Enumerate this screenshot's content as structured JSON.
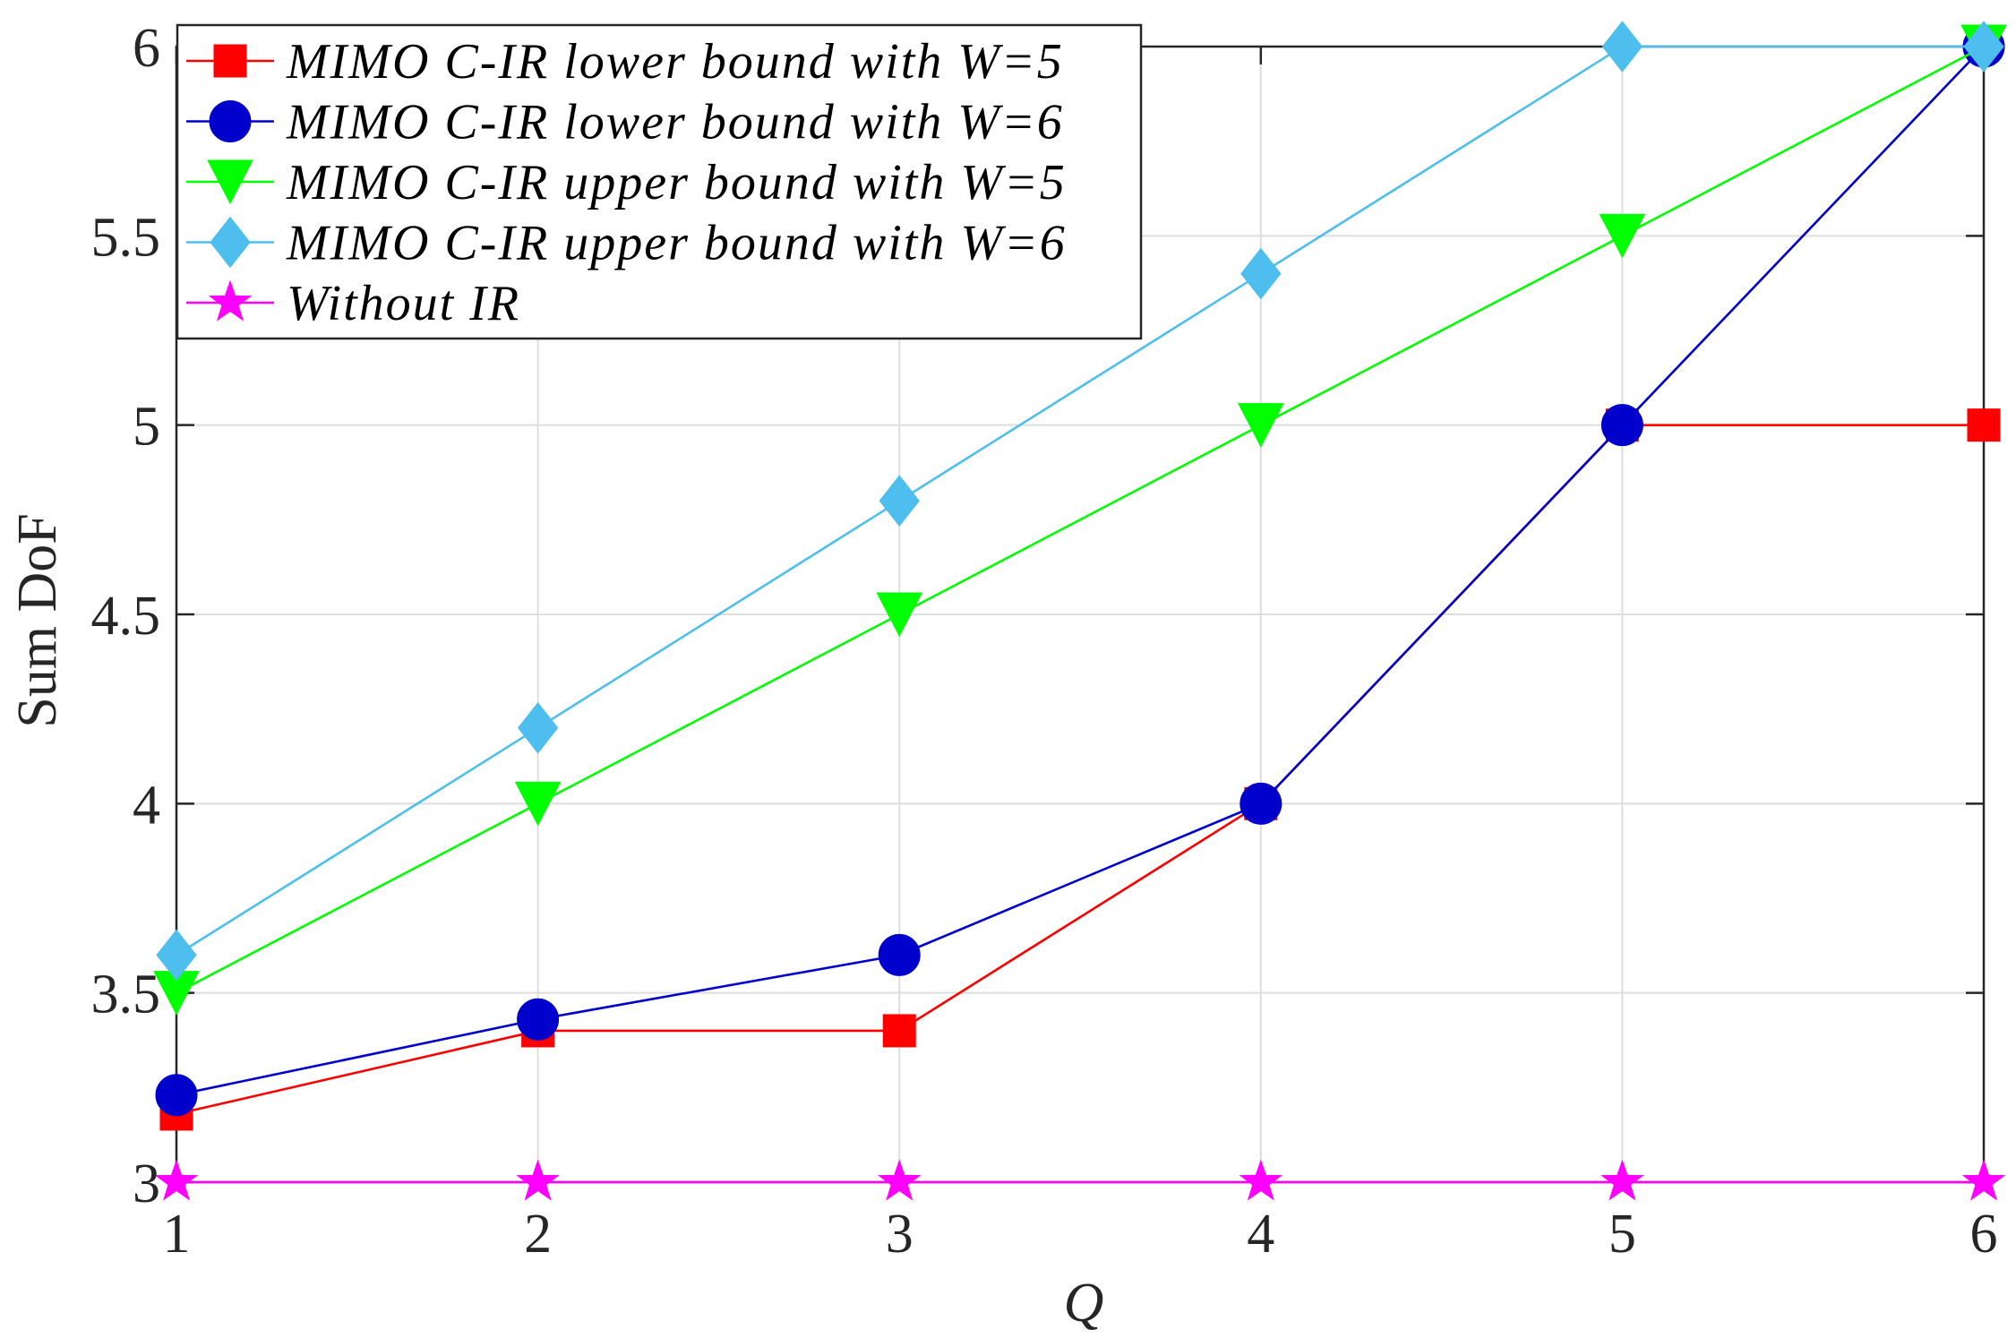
{
  "chart_data": {
    "type": "line",
    "title": "",
    "xlabel": "Q",
    "ylabel": "Sum DoF",
    "x": [
      1,
      2,
      3,
      4,
      5,
      6
    ],
    "xlim": [
      1,
      6
    ],
    "ylim": [
      3,
      6
    ],
    "xticks": [
      "1",
      "2",
      "3",
      "4",
      "5",
      "6"
    ],
    "yticks": [
      "3",
      "3.5",
      "4",
      "4.5",
      "5",
      "5.5",
      "6"
    ],
    "grid": true,
    "legend_position": "top-left",
    "series": [
      {
        "name": "MIMO C-IR lower bound with W=5",
        "color": "#ff0000",
        "marker": "square",
        "values": [
          3.18,
          3.4,
          3.4,
          4.0,
          5.0,
          5.0
        ]
      },
      {
        "name": "MIMO C-IR lower bound with W=6",
        "color": "#0000cc",
        "marker": "circle",
        "values": [
          3.23,
          3.43,
          3.6,
          4.0,
          5.0,
          6.0
        ]
      },
      {
        "name": "MIMO C-IR upper bound with W=5",
        "color": "#00ff00",
        "marker": "triangle-down",
        "values": [
          3.5,
          4.0,
          4.5,
          5.0,
          5.5,
          6.0
        ]
      },
      {
        "name": "MIMO C-IR upper bound with W=6",
        "color": "#4dbeee",
        "marker": "diamond",
        "values": [
          3.6,
          4.2,
          4.8,
          5.4,
          6.0,
          6.0
        ]
      },
      {
        "name": "Without IR",
        "color": "#ff00ff",
        "marker": "star",
        "values": [
          3.0,
          3.0,
          3.0,
          3.0,
          3.0,
          3.0
        ]
      }
    ]
  }
}
